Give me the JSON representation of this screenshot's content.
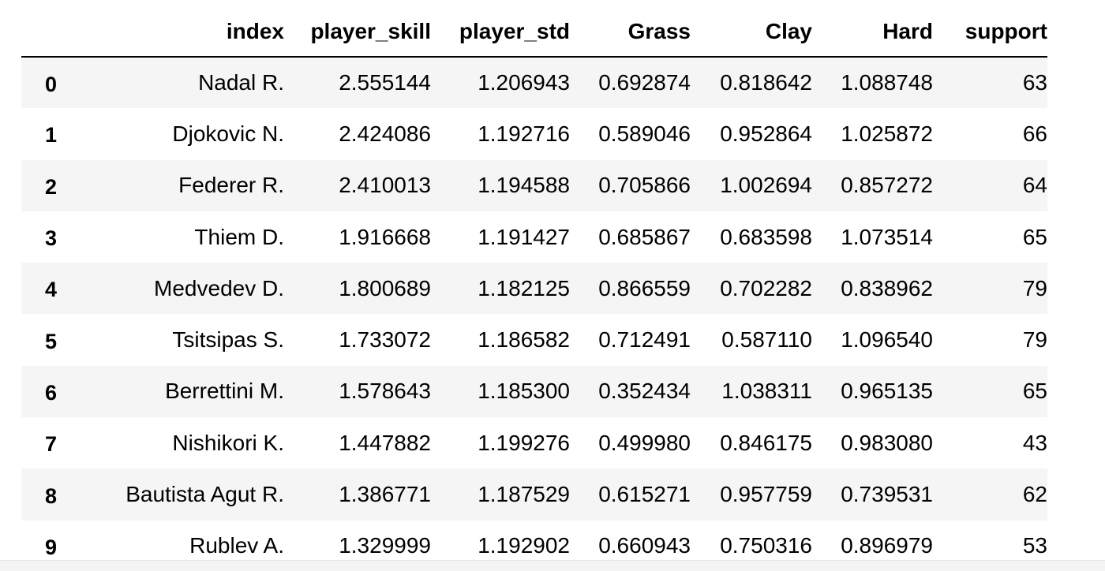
{
  "table": {
    "columns": [
      "",
      "index",
      "player_skill",
      "player_std",
      "Grass",
      "Clay",
      "Hard",
      "support"
    ],
    "rows": [
      {
        "row": "0",
        "index": "Nadal R.",
        "player_skill": "2.555144",
        "player_std": "1.206943",
        "Grass": "0.692874",
        "Clay": "0.818642",
        "Hard": "1.088748",
        "support": "63"
      },
      {
        "row": "1",
        "index": "Djokovic N.",
        "player_skill": "2.424086",
        "player_std": "1.192716",
        "Grass": "0.589046",
        "Clay": "0.952864",
        "Hard": "1.025872",
        "support": "66"
      },
      {
        "row": "2",
        "index": "Federer R.",
        "player_skill": "2.410013",
        "player_std": "1.194588",
        "Grass": "0.705866",
        "Clay": "1.002694",
        "Hard": "0.857272",
        "support": "64"
      },
      {
        "row": "3",
        "index": "Thiem D.",
        "player_skill": "1.916668",
        "player_std": "1.191427",
        "Grass": "0.685867",
        "Clay": "0.683598",
        "Hard": "1.073514",
        "support": "65"
      },
      {
        "row": "4",
        "index": "Medvedev D.",
        "player_skill": "1.800689",
        "player_std": "1.182125",
        "Grass": "0.866559",
        "Clay": "0.702282",
        "Hard": "0.838962",
        "support": "79"
      },
      {
        "row": "5",
        "index": "Tsitsipas S.",
        "player_skill": "1.733072",
        "player_std": "1.186582",
        "Grass": "0.712491",
        "Clay": "0.587110",
        "Hard": "1.096540",
        "support": "79"
      },
      {
        "row": "6",
        "index": "Berrettini M.",
        "player_skill": "1.578643",
        "player_std": "1.185300",
        "Grass": "0.352434",
        "Clay": "1.038311",
        "Hard": "0.965135",
        "support": "65"
      },
      {
        "row": "7",
        "index": "Nishikori K.",
        "player_skill": "1.447882",
        "player_std": "1.199276",
        "Grass": "0.499980",
        "Clay": "0.846175",
        "Hard": "0.983080",
        "support": "43"
      },
      {
        "row": "8",
        "index": "Bautista Agut R.",
        "player_skill": "1.386771",
        "player_std": "1.187529",
        "Grass": "0.615271",
        "Clay": "0.957759",
        "Hard": "0.739531",
        "support": "62"
      },
      {
        "row": "9",
        "index": "Rublev A.",
        "player_skill": "1.329999",
        "player_std": "1.192902",
        "Grass": "0.660943",
        "Clay": "0.750316",
        "Hard": "0.896979",
        "support": "53"
      }
    ]
  }
}
